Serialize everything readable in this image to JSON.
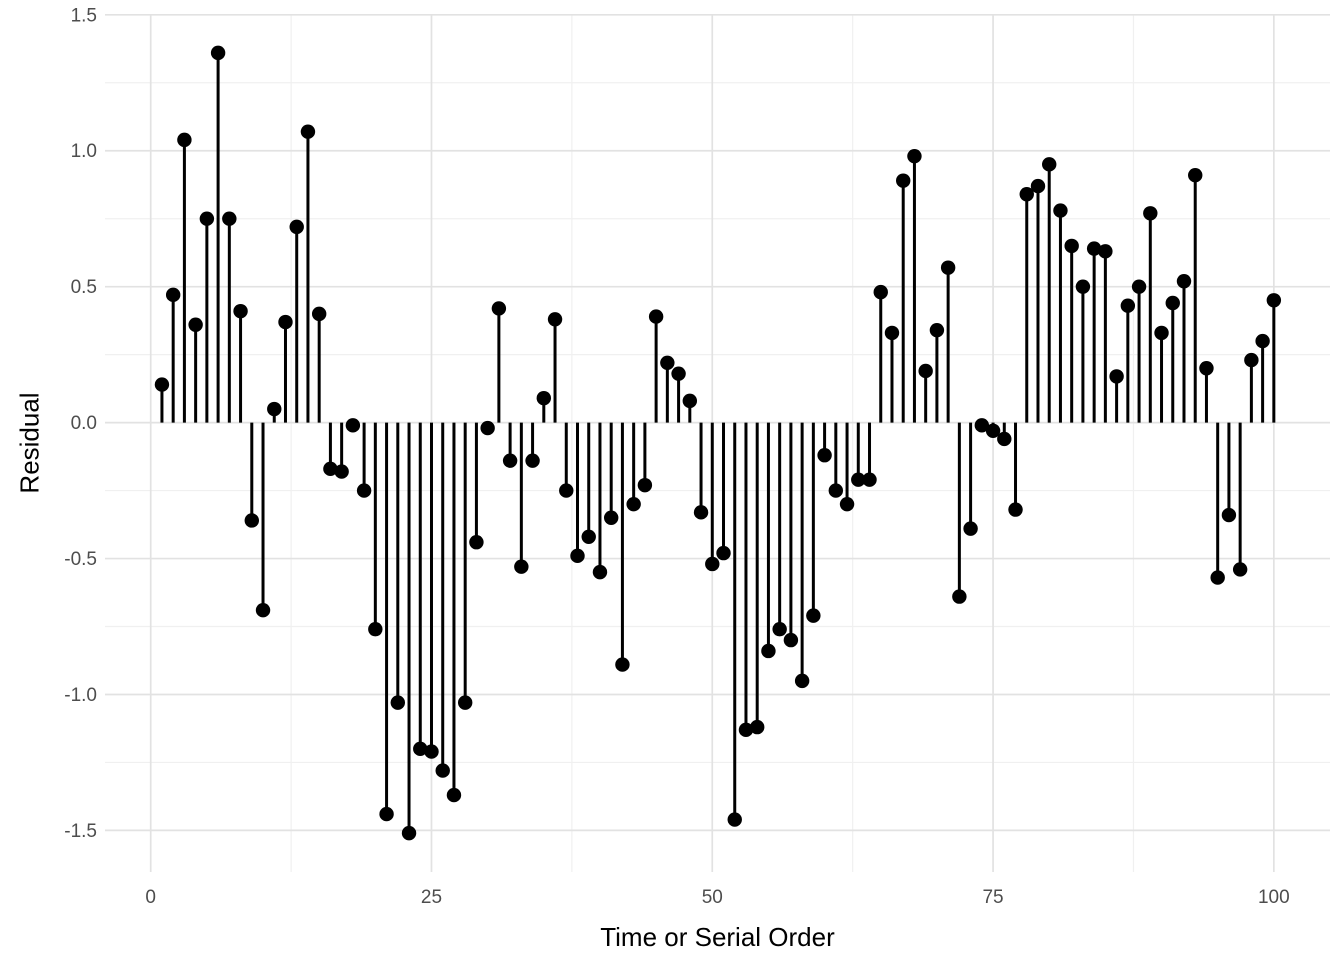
{
  "chart_data": {
    "type": "stem",
    "title": "",
    "xlabel": "Time or Serial Order",
    "ylabel": "Residual",
    "x_start": 1,
    "x_step": 1,
    "values": [
      0.14,
      0.47,
      1.04,
      0.36,
      0.75,
      1.36,
      0.75,
      0.41,
      -0.36,
      -0.69,
      0.05,
      0.37,
      0.72,
      1.07,
      0.4,
      -0.17,
      -0.18,
      -0.01,
      -0.25,
      -0.76,
      -1.44,
      -1.03,
      -1.51,
      -1.2,
      -1.21,
      -1.28,
      -1.37,
      -1.03,
      -0.44,
      -0.02,
      0.42,
      -0.14,
      -0.53,
      -0.14,
      0.09,
      0.38,
      -0.25,
      -0.49,
      -0.42,
      -0.55,
      -0.35,
      -0.89,
      -0.3,
      -0.23,
      0.39,
      0.22,
      0.18,
      0.08,
      -0.33,
      -0.52,
      -0.48,
      -1.46,
      -1.13,
      -1.12,
      -0.84,
      -0.76,
      -0.8,
      -0.95,
      -0.71,
      -0.12,
      -0.25,
      -0.3,
      -0.21,
      -0.21,
      0.48,
      0.33,
      0.89,
      0.98,
      0.19,
      0.34,
      0.57,
      -0.64,
      -0.39,
      -0.01,
      -0.03,
      -0.06,
      -0.32,
      0.84,
      0.87,
      0.95,
      0.78,
      0.65,
      0.5,
      0.64,
      0.63,
      0.17,
      0.43,
      0.5,
      0.77,
      0.33,
      0.44,
      0.52,
      0.91,
      0.2,
      -0.57,
      -0.34,
      -0.54,
      0.23,
      0.3,
      0.45
    ],
    "baseline": 0,
    "xlim": [
      -4.07,
      105.0
    ],
    "ylim": [
      -1.653,
      1.503
    ],
    "x_major_ticks": [
      0,
      25,
      50,
      75,
      100
    ],
    "x_tick_labels": [
      "0",
      "25",
      "50",
      "75",
      "100"
    ],
    "x_minor_ticks": [
      12.5,
      37.5,
      62.5,
      87.5
    ],
    "y_major_ticks": [
      -1.5,
      -1.0,
      -0.5,
      0.0,
      0.5,
      1.0,
      1.5
    ],
    "y_tick_labels": [
      "-1.5",
      "-1.0",
      "-0.5",
      "0.0",
      "0.5",
      "1.0",
      "1.5"
    ],
    "y_minor_ticks": [
      -1.25,
      -0.75,
      -0.25,
      0.25,
      0.75,
      1.25
    ],
    "grid": true,
    "legend": "none",
    "colors": {
      "stem": "#000000",
      "point": "#000000",
      "grid_major": "#E2E2E2",
      "grid_minor": "#F0F0F0",
      "tick_label": "#4D4D4D",
      "axis_title": "#000000",
      "background": "#FFFFFF"
    },
    "style": {
      "point_radius": 7.2,
      "stem_width": 3,
      "tick_font_size": 19
    }
  }
}
